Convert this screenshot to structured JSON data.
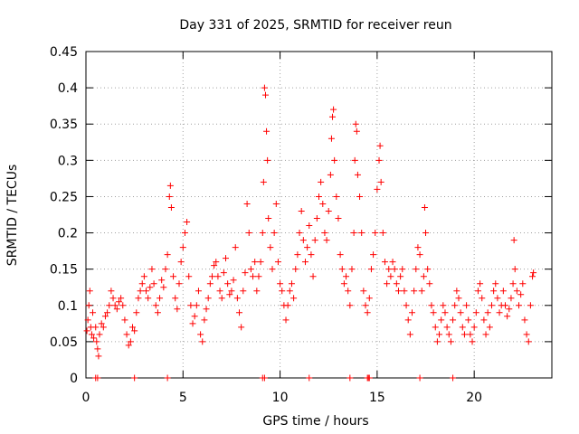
{
  "chart_data": {
    "type": "scatter",
    "title": "Day 331 of 2025, SRMTID for receiver reun",
    "xlabel": "GPS time / hours",
    "ylabel": "SRMTID / TECUs",
    "xlim": [
      0,
      24
    ],
    "ylim": [
      0,
      0.45
    ],
    "xticks": [
      "0",
      "5",
      "10",
      "15",
      "20"
    ],
    "yticks": [
      "0",
      "0.05",
      "0.1",
      "0.15",
      "0.2",
      "0.25",
      "0.3",
      "0.35",
      "0.4",
      "0.45"
    ],
    "grid": true,
    "marker": "plus",
    "series": [
      {
        "name": "SRMTID",
        "color": "#ff0000",
        "points": [
          [
            0.05,
            0.065
          ],
          [
            0.1,
            0.08
          ],
          [
            0.15,
            0.1
          ],
          [
            0.2,
            0.12
          ],
          [
            0.25,
            0.07
          ],
          [
            0.3,
            0.06
          ],
          [
            0.35,
            0.09
          ],
          [
            0.4,
            0.055
          ],
          [
            0.5,
            0.07
          ],
          [
            0.55,
            0.05
          ],
          [
            0.6,
            0.04
          ],
          [
            0.65,
            0.03
          ],
          [
            0.7,
            0.06
          ],
          [
            0.8,
            0.075
          ],
          [
            0.9,
            0.07
          ],
          [
            1.0,
            0.085
          ],
          [
            1.1,
            0.09
          ],
          [
            1.2,
            0.1
          ],
          [
            1.3,
            0.12
          ],
          [
            1.4,
            0.11
          ],
          [
            1.5,
            0.1
          ],
          [
            1.6,
            0.095
          ],
          [
            1.7,
            0.105
          ],
          [
            1.8,
            0.11
          ],
          [
            1.9,
            0.1
          ],
          [
            2.0,
            0.08
          ],
          [
            2.1,
            0.06
          ],
          [
            2.2,
            0.045
          ],
          [
            2.3,
            0.05
          ],
          [
            2.4,
            0.07
          ],
          [
            2.5,
            0.065
          ],
          [
            2.6,
            0.09
          ],
          [
            2.7,
            0.11
          ],
          [
            2.8,
            0.12
          ],
          [
            2.9,
            0.13
          ],
          [
            3.0,
            0.14
          ],
          [
            3.1,
            0.12
          ],
          [
            3.2,
            0.11
          ],
          [
            3.3,
            0.125
          ],
          [
            3.4,
            0.15
          ],
          [
            3.5,
            0.13
          ],
          [
            3.6,
            0.1
          ],
          [
            3.7,
            0.09
          ],
          [
            3.8,
            0.11
          ],
          [
            3.9,
            0.135
          ],
          [
            4.0,
            0.125
          ],
          [
            4.1,
            0.15
          ],
          [
            4.2,
            0.17
          ],
          [
            4.3,
            0.25
          ],
          [
            4.35,
            0.265
          ],
          [
            4.4,
            0.235
          ],
          [
            4.5,
            0.14
          ],
          [
            4.6,
            0.11
          ],
          [
            4.7,
            0.095
          ],
          [
            4.8,
            0.13
          ],
          [
            4.9,
            0.16
          ],
          [
            5.0,
            0.18
          ],
          [
            5.1,
            0.2
          ],
          [
            5.2,
            0.215
          ],
          [
            5.3,
            0.14
          ],
          [
            5.4,
            0.1
          ],
          [
            5.5,
            0.075
          ],
          [
            5.6,
            0.085
          ],
          [
            5.7,
            0.1
          ],
          [
            5.8,
            0.12
          ],
          [
            5.9,
            0.06
          ],
          [
            6.0,
            0.05
          ],
          [
            6.1,
            0.08
          ],
          [
            6.2,
            0.095
          ],
          [
            6.3,
            0.11
          ],
          [
            6.4,
            0.13
          ],
          [
            6.5,
            0.14
          ],
          [
            6.6,
            0.155
          ],
          [
            6.7,
            0.16
          ],
          [
            6.8,
            0.14
          ],
          [
            6.9,
            0.12
          ],
          [
            7.0,
            0.11
          ],
          [
            7.1,
            0.145
          ],
          [
            7.2,
            0.165
          ],
          [
            7.3,
            0.13
          ],
          [
            7.4,
            0.115
          ],
          [
            7.5,
            0.12
          ],
          [
            7.6,
            0.135
          ],
          [
            7.7,
            0.18
          ],
          [
            7.8,
            0.11
          ],
          [
            7.9,
            0.09
          ],
          [
            8.0,
            0.07
          ],
          [
            8.1,
            0.12
          ],
          [
            8.2,
            0.145
          ],
          [
            8.3,
            0.24
          ],
          [
            8.4,
            0.2
          ],
          [
            8.5,
            0.15
          ],
          [
            8.6,
            0.14
          ],
          [
            8.7,
            0.16
          ],
          [
            8.8,
            0.12
          ],
          [
            8.9,
            0.14
          ],
          [
            9.0,
            0.16
          ],
          [
            9.1,
            0.2
          ],
          [
            9.15,
            0.27
          ],
          [
            9.2,
            0.4
          ],
          [
            9.25,
            0.39
          ],
          [
            9.3,
            0.34
          ],
          [
            9.35,
            0.3
          ],
          [
            9.4,
            0.22
          ],
          [
            9.5,
            0.18
          ],
          [
            9.6,
            0.15
          ],
          [
            9.7,
            0.2
          ],
          [
            9.8,
            0.24
          ],
          [
            9.9,
            0.16
          ],
          [
            10.0,
            0.13
          ],
          [
            10.1,
            0.12
          ],
          [
            10.2,
            0.1
          ],
          [
            10.3,
            0.08
          ],
          [
            10.4,
            0.1
          ],
          [
            10.5,
            0.12
          ],
          [
            10.6,
            0.13
          ],
          [
            10.7,
            0.11
          ],
          [
            10.8,
            0.15
          ],
          [
            10.9,
            0.17
          ],
          [
            11.0,
            0.2
          ],
          [
            11.1,
            0.23
          ],
          [
            11.2,
            0.19
          ],
          [
            11.3,
            0.16
          ],
          [
            11.4,
            0.18
          ],
          [
            11.5,
            0.21
          ],
          [
            11.6,
            0.17
          ],
          [
            11.7,
            0.14
          ],
          [
            11.8,
            0.19
          ],
          [
            11.9,
            0.22
          ],
          [
            12.0,
            0.25
          ],
          [
            12.1,
            0.27
          ],
          [
            12.2,
            0.24
          ],
          [
            12.3,
            0.2
          ],
          [
            12.4,
            0.19
          ],
          [
            12.5,
            0.23
          ],
          [
            12.6,
            0.28
          ],
          [
            12.65,
            0.33
          ],
          [
            12.7,
            0.36
          ],
          [
            12.75,
            0.37
          ],
          [
            12.8,
            0.3
          ],
          [
            12.9,
            0.25
          ],
          [
            13.0,
            0.22
          ],
          [
            13.1,
            0.17
          ],
          [
            13.2,
            0.15
          ],
          [
            13.3,
            0.13
          ],
          [
            13.4,
            0.14
          ],
          [
            13.5,
            0.12
          ],
          [
            13.6,
            0.1
          ],
          [
            13.7,
            0.15
          ],
          [
            13.8,
            0.2
          ],
          [
            13.85,
            0.3
          ],
          [
            13.9,
            0.35
          ],
          [
            13.95,
            0.34
          ],
          [
            14.0,
            0.28
          ],
          [
            14.1,
            0.25
          ],
          [
            14.2,
            0.2
          ],
          [
            14.3,
            0.12
          ],
          [
            14.4,
            0.1
          ],
          [
            14.5,
            0.09
          ],
          [
            14.6,
            0.11
          ],
          [
            14.7,
            0.15
          ],
          [
            14.8,
            0.17
          ],
          [
            14.9,
            0.2
          ],
          [
            15.0,
            0.26
          ],
          [
            15.1,
            0.3
          ],
          [
            15.15,
            0.32
          ],
          [
            15.2,
            0.27
          ],
          [
            15.3,
            0.2
          ],
          [
            15.4,
            0.16
          ],
          [
            15.5,
            0.13
          ],
          [
            15.6,
            0.15
          ],
          [
            15.7,
            0.14
          ],
          [
            15.8,
            0.16
          ],
          [
            15.9,
            0.15
          ],
          [
            16.0,
            0.13
          ],
          [
            16.1,
            0.12
          ],
          [
            16.2,
            0.14
          ],
          [
            16.3,
            0.15
          ],
          [
            16.4,
            0.12
          ],
          [
            16.5,
            0.1
          ],
          [
            16.6,
            0.08
          ],
          [
            16.7,
            0.06
          ],
          [
            16.8,
            0.09
          ],
          [
            16.9,
            0.12
          ],
          [
            17.0,
            0.15
          ],
          [
            17.1,
            0.18
          ],
          [
            17.2,
            0.17
          ],
          [
            17.3,
            0.12
          ],
          [
            17.4,
            0.14
          ],
          [
            17.45,
            0.235
          ],
          [
            17.5,
            0.2
          ],
          [
            17.6,
            0.15
          ],
          [
            17.7,
            0.13
          ],
          [
            17.8,
            0.1
          ],
          [
            17.9,
            0.09
          ],
          [
            18.0,
            0.07
          ],
          [
            18.1,
            0.05
          ],
          [
            18.2,
            0.06
          ],
          [
            18.3,
            0.08
          ],
          [
            18.4,
            0.1
          ],
          [
            18.5,
            0.09
          ],
          [
            18.6,
            0.07
          ],
          [
            18.7,
            0.06
          ],
          [
            18.8,
            0.05
          ],
          [
            18.9,
            0.08
          ],
          [
            19.0,
            0.1
          ],
          [
            19.1,
            0.12
          ],
          [
            19.2,
            0.11
          ],
          [
            19.3,
            0.09
          ],
          [
            19.4,
            0.07
          ],
          [
            19.5,
            0.06
          ],
          [
            19.6,
            0.1
          ],
          [
            19.7,
            0.08
          ],
          [
            19.8,
            0.06
          ],
          [
            19.9,
            0.05
          ],
          [
            20.0,
            0.07
          ],
          [
            20.1,
            0.09
          ],
          [
            20.2,
            0.12
          ],
          [
            20.3,
            0.13
          ],
          [
            20.4,
            0.11
          ],
          [
            20.5,
            0.08
          ],
          [
            20.6,
            0.06
          ],
          [
            20.7,
            0.09
          ],
          [
            20.8,
            0.07
          ],
          [
            20.9,
            0.1
          ],
          [
            21.0,
            0.12
          ],
          [
            21.1,
            0.13
          ],
          [
            21.2,
            0.11
          ],
          [
            21.3,
            0.09
          ],
          [
            21.4,
            0.1
          ],
          [
            21.5,
            0.12
          ],
          [
            21.6,
            0.1
          ],
          [
            21.7,
            0.085
          ],
          [
            21.8,
            0.095
          ],
          [
            21.9,
            0.11
          ],
          [
            22.0,
            0.13
          ],
          [
            22.05,
            0.19
          ],
          [
            22.1,
            0.15
          ],
          [
            22.2,
            0.12
          ],
          [
            22.3,
            0.1
          ],
          [
            22.4,
            0.115
          ],
          [
            22.5,
            0.13
          ],
          [
            22.6,
            0.08
          ],
          [
            22.7,
            0.06
          ],
          [
            22.8,
            0.05
          ],
          [
            22.9,
            0.1
          ],
          [
            23.0,
            0.14
          ],
          [
            23.05,
            0.145
          ],
          [
            0.5,
            0.0
          ],
          [
            0.6,
            0.0
          ],
          [
            2.5,
            0.0
          ],
          [
            4.2,
            0.0
          ],
          [
            9.1,
            0.0
          ],
          [
            9.2,
            0.0
          ],
          [
            11.5,
            0.0
          ],
          [
            13.6,
            0.0
          ],
          [
            14.5,
            0.0
          ],
          [
            14.55,
            0.0
          ],
          [
            14.6,
            0.0
          ],
          [
            17.2,
            0.0
          ],
          [
            18.9,
            0.0
          ]
        ]
      }
    ]
  }
}
